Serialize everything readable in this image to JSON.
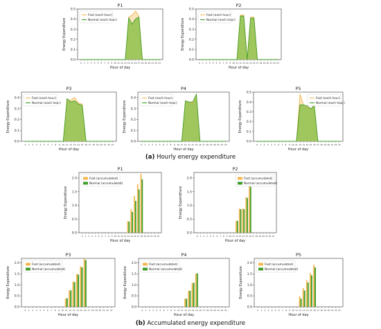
{
  "captions": {
    "a": {
      "label": "(a)",
      "text": "Hourly energy expenditure"
    },
    "b": {
      "label": "(b)",
      "text": "Accumulated energy expenditure"
    }
  },
  "colors": {
    "fast": "#f4b752",
    "fast_fill": "#f7d9a3",
    "normal": "#3e9e2a",
    "normal_fill": "#8fc24d"
  },
  "chart_data": [
    {
      "type": "area",
      "title": "P1",
      "xlabel": "Hour of day",
      "ylabel": "Energy Expenditure",
      "x": [
        0,
        1,
        2,
        3,
        4,
        5,
        6,
        7,
        8,
        9,
        10,
        11,
        12,
        13,
        14,
        15,
        16,
        17,
        18,
        19,
        20,
        21,
        22,
        23
      ],
      "xticks": [
        "0",
        "1",
        "2",
        "3",
        "4",
        "5",
        "6",
        "7",
        "8",
        "9",
        "10",
        "11",
        "12",
        "13",
        "14",
        "15",
        "16",
        "17",
        "18",
        "19",
        "20",
        "21",
        "22",
        "23"
      ],
      "ylim": [
        0,
        0.5
      ],
      "yticks": [
        "0.0",
        "0.1",
        "0.2",
        "0.3",
        "0.4",
        "0.5"
      ],
      "legend": "top-left",
      "series": [
        {
          "name": "Fast (each hour)",
          "values": [
            0,
            0,
            0,
            0,
            0,
            0,
            0,
            0,
            0,
            0,
            0,
            0,
            0,
            0,
            0.42,
            0.44,
            0.48,
            0.43,
            0,
            0,
            0,
            0,
            0,
            0
          ]
        },
        {
          "name": "Normal (each hour)",
          "values": [
            0,
            0,
            0,
            0,
            0,
            0,
            0,
            0,
            0,
            0,
            0,
            0,
            0,
            0,
            0.41,
            0.35,
            0.4,
            0.42,
            0,
            0,
            0,
            0,
            0,
            0
          ]
        }
      ]
    },
    {
      "type": "area",
      "title": "P2",
      "xlabel": "Hour of day",
      "ylabel": "Energy Expenditure",
      "x": [
        0,
        1,
        2,
        3,
        4,
        5,
        6,
        7,
        8,
        9,
        10,
        11,
        12,
        13,
        14,
        15,
        16,
        17,
        18,
        19,
        20,
        21,
        22,
        23
      ],
      "xticks": [
        "0",
        "1",
        "2",
        "3",
        "4",
        "5",
        "6",
        "7",
        "8",
        "9",
        "10",
        "11",
        "12",
        "13",
        "14",
        "15",
        "16",
        "17",
        "18",
        "19",
        "20",
        "21",
        "22",
        "23"
      ],
      "ylim": [
        0,
        0.5
      ],
      "yticks": [
        "0.0",
        "0.1",
        "0.2",
        "0.3",
        "0.4",
        "0.5"
      ],
      "legend": "top-left",
      "series": [
        {
          "name": "Fast (each hour)",
          "values": [
            0,
            0,
            0,
            0,
            0,
            0,
            0,
            0,
            0,
            0,
            0,
            0,
            0.44,
            0.44,
            0,
            0.42,
            0.42,
            0,
            0,
            0,
            0,
            0,
            0,
            0
          ]
        },
        {
          "name": "Normal (each hour)",
          "values": [
            0,
            0,
            0,
            0,
            0,
            0,
            0,
            0,
            0,
            0,
            0,
            0,
            0.43,
            0.43,
            0,
            0.41,
            0.41,
            0,
            0,
            0,
            0,
            0,
            0,
            0
          ]
        }
      ]
    },
    {
      "type": "area",
      "title": "P3",
      "xlabel": "Hour of day",
      "ylabel": "Energy Expenditure",
      "x": [
        0,
        1,
        2,
        3,
        4,
        5,
        6,
        7,
        8,
        9,
        10,
        11,
        12,
        13,
        14,
        15,
        16,
        17,
        18,
        19,
        20,
        21,
        22,
        23
      ],
      "xticks": [
        "0",
        "1",
        "2",
        "3",
        "4",
        "5",
        "6",
        "7",
        "8",
        "9",
        "10",
        "11",
        "12",
        "13",
        "14",
        "15",
        "16",
        "17",
        "18",
        "19",
        "20",
        "21",
        "22",
        "23"
      ],
      "ylim": [
        0,
        0.45
      ],
      "yticks": [
        "0.0",
        "0.1",
        "0.2",
        "0.3",
        "0.4"
      ],
      "legend": "top-left",
      "series": [
        {
          "name": "Fast (each hour)",
          "values": [
            0,
            0,
            0,
            0,
            0,
            0,
            0,
            0,
            0,
            0,
            0,
            0.37,
            0.38,
            0.4,
            0.35,
            0.34,
            0,
            0,
            0,
            0,
            0,
            0,
            0,
            0
          ]
        },
        {
          "name": "Normal (each hour)",
          "values": [
            0,
            0,
            0,
            0,
            0,
            0,
            0,
            0,
            0,
            0,
            0,
            0.39,
            0.36,
            0.37,
            0.34,
            0.33,
            0,
            0,
            0,
            0,
            0,
            0,
            0,
            0
          ]
        }
      ]
    },
    {
      "type": "area",
      "title": "P4",
      "xlabel": "Hour of day",
      "ylabel": "Energy Expenditure",
      "x": [
        0,
        1,
        2,
        3,
        4,
        5,
        6,
        7,
        8,
        9,
        10,
        11,
        12,
        13,
        14,
        15,
        16,
        17,
        18,
        19,
        20,
        21,
        22,
        23
      ],
      "xticks": [
        "0",
        "1",
        "2",
        "3",
        "4",
        "5",
        "6",
        "7",
        "8",
        "9",
        "10",
        "11",
        "12",
        "13",
        "14",
        "15",
        "16",
        "17",
        "18",
        "19",
        "20",
        "21",
        "22",
        "23"
      ],
      "ylim": [
        0,
        0.45
      ],
      "yticks": [
        "0.0",
        "0.1",
        "0.2",
        "0.3",
        "0.4"
      ],
      "legend": "top-left",
      "series": [
        {
          "name": "Fast (each hour)",
          "values": [
            0,
            0,
            0,
            0,
            0,
            0,
            0,
            0,
            0,
            0,
            0,
            0,
            0.37,
            0.36,
            0.35,
            0.43,
            0,
            0,
            0,
            0,
            0,
            0,
            0,
            0
          ]
        },
        {
          "name": "Normal (each hour)",
          "values": [
            0,
            0,
            0,
            0,
            0,
            0,
            0,
            0,
            0,
            0,
            0,
            0,
            0.37,
            0.36,
            0.36,
            0.43,
            0,
            0,
            0,
            0,
            0,
            0,
            0,
            0
          ]
        }
      ]
    },
    {
      "type": "area",
      "title": "P5",
      "xlabel": "Hour of day",
      "ylabel": "Energy Expenditure",
      "x": [
        0,
        1,
        2,
        3,
        4,
        5,
        6,
        7,
        8,
        9,
        10,
        11,
        12,
        13,
        14,
        15,
        16,
        17,
        18,
        19,
        20,
        21,
        22,
        23
      ],
      "xticks": [
        "0",
        "1",
        "2",
        "3",
        "4",
        "5",
        "6",
        "7",
        "8",
        "9",
        "10",
        "11",
        "12",
        "13",
        "14",
        "15",
        "16",
        "17",
        "18",
        "19",
        "20",
        "21",
        "22",
        "23"
      ],
      "ylim": [
        0,
        0.5
      ],
      "yticks": [
        "0.0",
        "0.1",
        "0.2",
        "0.3",
        "0.4",
        "0.5"
      ],
      "legend": "top-right",
      "series": [
        {
          "name": "Fast (each hour)",
          "values": [
            0,
            0,
            0,
            0,
            0,
            0,
            0,
            0,
            0,
            0,
            0,
            0,
            0.48,
            0.37,
            0.35,
            0.33,
            0.37,
            0,
            0,
            0,
            0,
            0,
            0,
            0
          ]
        },
        {
          "name": "Normal (each hour)",
          "values": [
            0,
            0,
            0,
            0,
            0,
            0,
            0,
            0,
            0,
            0,
            0,
            0,
            0.37,
            0.37,
            0.36,
            0.33,
            0.36,
            0,
            0,
            0,
            0,
            0,
            0,
            0
          ]
        }
      ]
    },
    {
      "type": "bar",
      "title": "P1",
      "xlabel": "Hour of day",
      "ylabel": "Energy Expenditure",
      "categories": [
        "0",
        "1",
        "2",
        "3",
        "4",
        "5",
        "6",
        "7",
        "8",
        "9",
        "10",
        "11",
        "12",
        "13",
        "14",
        "15",
        "16",
        "17",
        "18",
        "19",
        "20",
        "21",
        "22",
        "23"
      ],
      "ylim": [
        0,
        2.2
      ],
      "yticks": [
        "0.0",
        "0.5",
        "1.0",
        "1.5",
        "2.0"
      ],
      "legend": "top-left",
      "series": [
        {
          "name": "Fast (accumulated)",
          "values": [
            0,
            0,
            0,
            0,
            0,
            0,
            0,
            0,
            0,
            0,
            0,
            0,
            0,
            0,
            0.42,
            0.86,
            1.34,
            1.77,
            2.15,
            0,
            0,
            0,
            0,
            0
          ]
        },
        {
          "name": "Normal (accumulated)",
          "values": [
            0,
            0,
            0,
            0,
            0,
            0,
            0,
            0,
            0,
            0,
            0,
            0,
            0,
            0,
            0.41,
            0.76,
            1.16,
            1.58,
            1.95,
            0,
            0,
            0,
            0,
            0
          ]
        }
      ]
    },
    {
      "type": "bar",
      "title": "P2",
      "xlabel": "Hour of day",
      "ylabel": "Energy Expenditure",
      "categories": [
        "0",
        "1",
        "2",
        "3",
        "4",
        "5",
        "6",
        "7",
        "8",
        "9",
        "10",
        "11",
        "12",
        "13",
        "14",
        "15",
        "16",
        "17",
        "18",
        "19",
        "20",
        "21",
        "22",
        "23"
      ],
      "ylim": [
        0,
        2.2
      ],
      "yticks": [
        "0.0",
        "0.5",
        "1.0",
        "1.5",
        "2.0"
      ],
      "legend": "top-right",
      "series": [
        {
          "name": "Fast (accumulated)",
          "values": [
            0,
            0,
            0,
            0,
            0,
            0,
            0,
            0,
            0,
            0,
            0,
            0,
            0.44,
            0.88,
            0.88,
            1.3,
            1.72,
            0,
            0,
            0,
            0,
            0,
            0,
            0
          ]
        },
        {
          "name": "Normal (accumulated)",
          "values": [
            0,
            0,
            0,
            0,
            0,
            0,
            0,
            0,
            0,
            0,
            0,
            0,
            0.43,
            0.86,
            0.86,
            1.27,
            1.68,
            0,
            0,
            0,
            0,
            0,
            0,
            0
          ]
        }
      ]
    },
    {
      "type": "bar",
      "title": "P3",
      "xlabel": "Hour of day",
      "ylabel": "Energy Expenditure",
      "categories": [
        "0",
        "1",
        "2",
        "3",
        "4",
        "5",
        "6",
        "7",
        "8",
        "9",
        "10",
        "11",
        "12",
        "13",
        "14",
        "15",
        "16",
        "17",
        "18",
        "19",
        "20",
        "21",
        "22",
        "23"
      ],
      "ylim": [
        0,
        2.2
      ],
      "yticks": [
        "0.0",
        "0.5",
        "1.0",
        "1.5",
        "2.0"
      ],
      "legend": "top-left",
      "series": [
        {
          "name": "Fast (accumulated)",
          "values": [
            0,
            0,
            0,
            0,
            0,
            0,
            0,
            0,
            0,
            0,
            0,
            0.37,
            0.75,
            1.15,
            1.5,
            1.84,
            2.18,
            0,
            0,
            0,
            0,
            0,
            0,
            0
          ]
        },
        {
          "name": "Normal (accumulated)",
          "values": [
            0,
            0,
            0,
            0,
            0,
            0,
            0,
            0,
            0,
            0,
            0,
            0.39,
            0.75,
            1.12,
            1.46,
            1.79,
            2.12,
            0,
            0,
            0,
            0,
            0,
            0,
            0
          ]
        }
      ]
    },
    {
      "type": "bar",
      "title": "P4",
      "xlabel": "Hour of day",
      "ylabel": "Energy Expenditure",
      "categories": [
        "0",
        "1",
        "2",
        "3",
        "4",
        "5",
        "6",
        "7",
        "8",
        "9",
        "10",
        "11",
        "12",
        "13",
        "14",
        "15",
        "16",
        "17",
        "18",
        "19",
        "20",
        "21",
        "22",
        "23"
      ],
      "ylim": [
        0,
        2.2
      ],
      "yticks": [
        "0.0",
        "0.5",
        "1.0",
        "1.5",
        "2.0"
      ],
      "legend": "top-left",
      "series": [
        {
          "name": "Fast (accumulated)",
          "values": [
            0,
            0,
            0,
            0,
            0,
            0,
            0,
            0,
            0,
            0,
            0,
            0,
            0.37,
            0.73,
            1.08,
            1.51,
            0,
            0,
            0,
            0,
            0,
            0,
            0,
            0
          ]
        },
        {
          "name": "Normal (accumulated)",
          "values": [
            0,
            0,
            0,
            0,
            0,
            0,
            0,
            0,
            0,
            0,
            0,
            0,
            0.37,
            0.73,
            1.09,
            1.52,
            0,
            0,
            0,
            0,
            0,
            0,
            0,
            0
          ]
        }
      ]
    },
    {
      "type": "bar",
      "title": "P5",
      "xlabel": "Hour of day",
      "ylabel": "Energy Expenditure",
      "categories": [
        "0",
        "1",
        "2",
        "3",
        "4",
        "5",
        "6",
        "7",
        "8",
        "9",
        "10",
        "11",
        "12",
        "13",
        "14",
        "15",
        "16",
        "17",
        "18",
        "19",
        "20",
        "21",
        "22",
        "23"
      ],
      "ylim": [
        0,
        2.2
      ],
      "yticks": [
        "0.0",
        "0.5",
        "1.0",
        "1.5",
        "2.0"
      ],
      "legend": "top-left",
      "series": [
        {
          "name": "Fast (accumulated)",
          "values": [
            0,
            0,
            0,
            0,
            0,
            0,
            0,
            0,
            0,
            0,
            0,
            0,
            0.48,
            0.85,
            1.2,
            1.53,
            1.9,
            0,
            0,
            0,
            0,
            0,
            0,
            0
          ]
        },
        {
          "name": "Normal (accumulated)",
          "values": [
            0,
            0,
            0,
            0,
            0,
            0,
            0,
            0,
            0,
            0,
            0,
            0,
            0.37,
            0.74,
            1.1,
            1.43,
            1.79,
            0,
            0,
            0,
            0,
            0,
            0,
            0
          ]
        }
      ]
    }
  ]
}
